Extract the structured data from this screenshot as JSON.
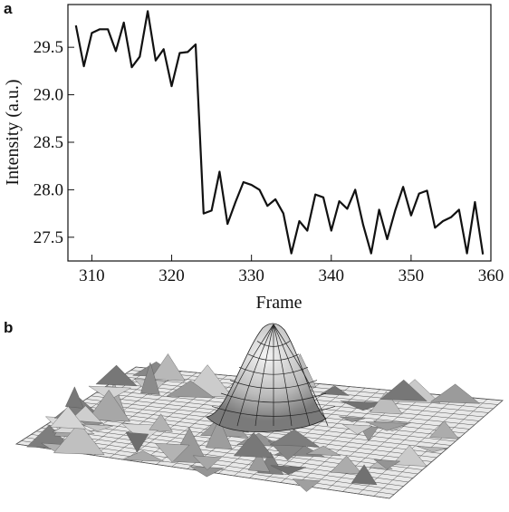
{
  "panel_a_label": "a",
  "panel_b_label": "b",
  "chart_data": {
    "type": "line",
    "title": "",
    "xlabel": "Frame",
    "ylabel": "Intensity (a.u.)",
    "xlim": [
      307,
      360
    ],
    "ylim": [
      27.25,
      29.95
    ],
    "xticks": [
      310,
      320,
      330,
      340,
      350,
      360
    ],
    "yticks": [
      27.5,
      28.0,
      28.5,
      29.0,
      29.5
    ],
    "ytick_labels": [
      "27.5",
      "28.0",
      "28.5",
      "29.0",
      "29.5"
    ],
    "grid": false,
    "x": [
      308,
      309,
      310,
      311,
      312,
      313,
      314,
      315,
      316,
      317,
      318,
      319,
      320,
      321,
      322,
      323,
      324,
      325,
      326,
      327,
      328,
      329,
      330,
      331,
      332,
      333,
      334,
      335,
      336,
      337,
      338,
      339,
      340,
      341,
      342,
      343,
      344,
      345,
      346,
      347,
      348,
      349,
      350,
      351,
      352,
      353,
      354,
      355,
      356,
      357,
      358,
      359
    ],
    "y": [
      29.73,
      29.3,
      29.65,
      29.69,
      29.69,
      29.46,
      29.76,
      29.29,
      29.4,
      29.88,
      29.36,
      29.48,
      29.09,
      29.44,
      29.45,
      29.53,
      27.75,
      27.78,
      28.19,
      27.64,
      27.87,
      28.08,
      28.05,
      28.0,
      27.83,
      27.9,
      27.75,
      27.33,
      27.67,
      27.57,
      27.95,
      27.92,
      27.57,
      27.88,
      27.8,
      28.0,
      27.63,
      27.33,
      27.79,
      27.48,
      27.78,
      28.03,
      27.73,
      27.96,
      27.99,
      27.6,
      27.67,
      27.71,
      27.79,
      27.33,
      27.87,
      27.32
    ]
  }
}
